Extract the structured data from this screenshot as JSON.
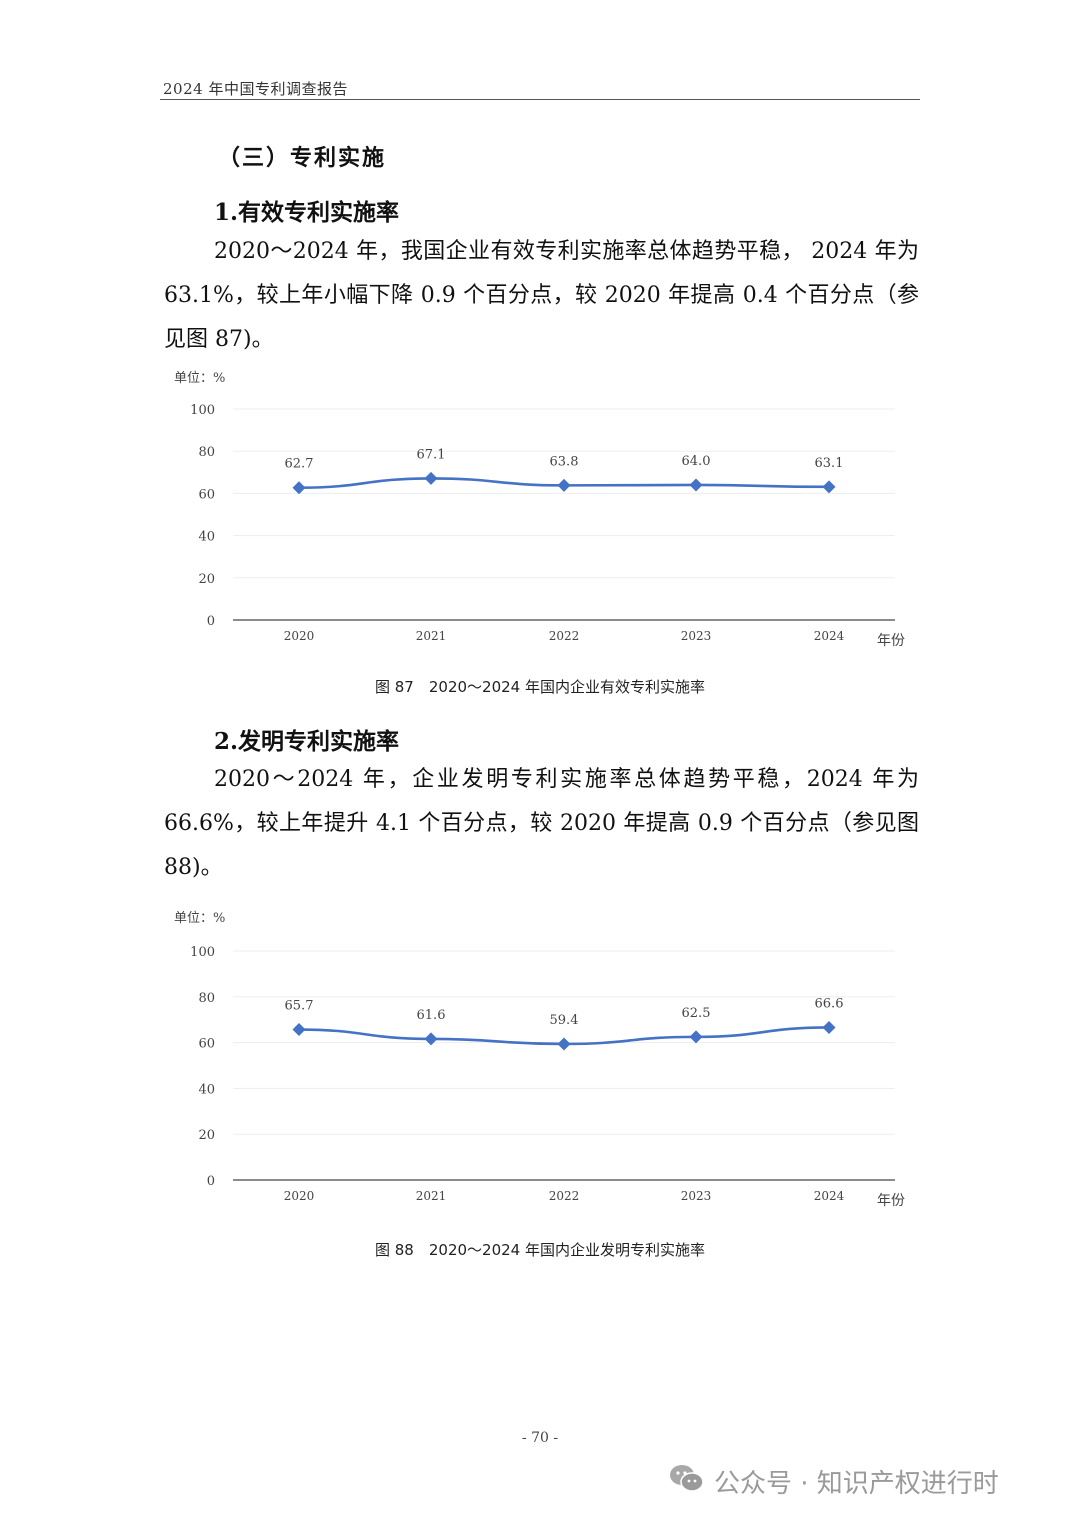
{
  "header": {
    "running_title": "2024 年中国专利调查报告"
  },
  "section": {
    "title": "（三）专利实施"
  },
  "subsection1": {
    "title": "1.有效专利实施率",
    "paragraph": "2020～2024 年，我国企业有效专利实施率总体趋势平稳， 2024 年为 63.1%，较上年小幅下降 0.9 个百分点，较 2020 年提高 0.4 个百分点（参见图 87)。",
    "unit_label": "单位：%",
    "caption": "图 87　2020～2024 年国内企业有效专利实施率"
  },
  "subsection2": {
    "title": "2.发明专利实施率",
    "paragraph": "2020～2024 年，企业发明专利实施率总体趋势平稳，2024 年为 66.6%，较上年提升 4.1 个百分点，较 2020 年提高 0.9 个百分点（参见图 88)。",
    "unit_label": "单位：%",
    "caption": "图 88　2020～2024 年国内企业发明专利实施率"
  },
  "footer": {
    "page_number": "- 70 -",
    "watermark": "公众号 · 知识产权进行时",
    "watermark_icon": "wechat-icon"
  },
  "colors": {
    "series": "#4472C4",
    "gridline": "#EDEDED",
    "axis": "#8C8C8C"
  },
  "chart_data": [
    {
      "type": "line",
      "title": "图 87　2020～2024 年国内企业有效专利实施率",
      "categories": [
        "2020",
        "2021",
        "2022",
        "2023",
        "2024"
      ],
      "values": [
        62.7,
        67.1,
        63.8,
        64.0,
        63.1
      ],
      "labels": [
        "62.7",
        "67.1",
        "63.8",
        "64.0",
        "63.1"
      ],
      "xlabel": "年份",
      "ylabel": "单位：%",
      "ylim": [
        0,
        100
      ],
      "yticks": [
        "0",
        "20",
        "40",
        "60",
        "80",
        "100"
      ],
      "grid": true,
      "legend": false,
      "marker": "diamond"
    },
    {
      "type": "line",
      "title": "图 88　2020～2024 年国内企业发明专利实施率",
      "categories": [
        "2020",
        "2021",
        "2022",
        "2023",
        "2024"
      ],
      "values": [
        65.7,
        61.6,
        59.4,
        62.5,
        66.6
      ],
      "labels": [
        "65.7",
        "61.6",
        "59.4",
        "62.5",
        "66.6"
      ],
      "xlabel": "年份",
      "ylabel": "单位：%",
      "ylim": [
        0,
        100
      ],
      "yticks": [
        "0",
        "20",
        "40",
        "60",
        "80",
        "100"
      ],
      "grid": true,
      "legend": false,
      "marker": "diamond"
    }
  ]
}
